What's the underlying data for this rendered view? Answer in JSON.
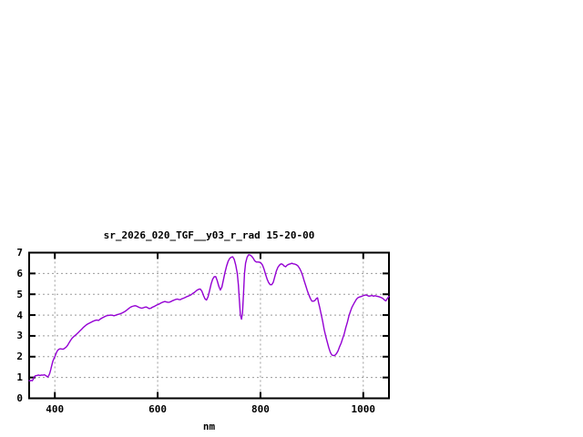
{
  "title": "sr_2026_020_TGF__y03_r_rad 15-20-00",
  "colors": {
    "curve": "#9400d3",
    "grid": "#9b9b9b",
    "frame": "#000000",
    "background": "#ffffff"
  },
  "chart_data": {
    "type": "line",
    "title": "sr_2026_020_TGF__y03_r_rad 15-20-00",
    "xlabel": "nm",
    "ylabel": "",
    "xlim": [
      350,
      1050
    ],
    "ylim": [
      0,
      7
    ],
    "xticks": [
      400,
      600,
      800,
      1000
    ],
    "yticks": [
      0,
      1,
      2,
      3,
      4,
      5,
      6,
      7
    ],
    "grid": true,
    "legend": "none",
    "series": [
      {
        "name": "sr_2026_020_TGF__y03_r_rad",
        "color": "#9400d3",
        "points": [
          [
            350,
            0.85
          ],
          [
            352,
            0.84
          ],
          [
            354,
            0.86
          ],
          [
            356,
            0.84
          ],
          [
            358,
            0.92
          ],
          [
            360,
            1.03
          ],
          [
            362,
            1.08
          ],
          [
            365,
            1.1
          ],
          [
            368,
            1.12
          ],
          [
            371,
            1.1
          ],
          [
            374,
            1.12
          ],
          [
            377,
            1.11
          ],
          [
            380,
            1.13
          ],
          [
            383,
            1.08
          ],
          [
            386,
            1.03
          ],
          [
            388,
            1.08
          ],
          [
            390,
            1.2
          ],
          [
            392,
            1.38
          ],
          [
            394,
            1.58
          ],
          [
            396,
            1.78
          ],
          [
            398,
            1.9
          ],
          [
            400,
            2.0
          ],
          [
            402,
            2.12
          ],
          [
            404,
            2.25
          ],
          [
            406,
            2.32
          ],
          [
            408,
            2.36
          ],
          [
            410,
            2.38
          ],
          [
            413,
            2.37
          ],
          [
            416,
            2.36
          ],
          [
            419,
            2.4
          ],
          [
            422,
            2.46
          ],
          [
            425,
            2.55
          ],
          [
            428,
            2.68
          ],
          [
            431,
            2.8
          ],
          [
            434,
            2.9
          ],
          [
            437,
            2.97
          ],
          [
            440,
            3.03
          ],
          [
            443,
            3.1
          ],
          [
            446,
            3.17
          ],
          [
            449,
            3.25
          ],
          [
            452,
            3.32
          ],
          [
            455,
            3.4
          ],
          [
            458,
            3.46
          ],
          [
            461,
            3.52
          ],
          [
            464,
            3.57
          ],
          [
            467,
            3.61
          ],
          [
            470,
            3.65
          ],
          [
            473,
            3.69
          ],
          [
            476,
            3.72
          ],
          [
            479,
            3.75
          ],
          [
            482,
            3.76
          ],
          [
            485,
            3.74
          ],
          [
            488,
            3.8
          ],
          [
            491,
            3.85
          ],
          [
            494,
            3.89
          ],
          [
            497,
            3.93
          ],
          [
            500,
            3.96
          ],
          [
            503,
            3.98
          ],
          [
            506,
            3.99
          ],
          [
            509,
            4.0
          ],
          [
            512,
            3.99
          ],
          [
            515,
            3.97
          ],
          [
            518,
            3.99
          ],
          [
            521,
            4.02
          ],
          [
            524,
            4.04
          ],
          [
            527,
            4.06
          ],
          [
            530,
            4.09
          ],
          [
            533,
            4.13
          ],
          [
            536,
            4.17
          ],
          [
            539,
            4.22
          ],
          [
            542,
            4.28
          ],
          [
            545,
            4.34
          ],
          [
            548,
            4.39
          ],
          [
            551,
            4.42
          ],
          [
            554,
            4.44
          ],
          [
            557,
            4.45
          ],
          [
            560,
            4.42
          ],
          [
            563,
            4.38
          ],
          [
            566,
            4.35
          ],
          [
            569,
            4.33
          ],
          [
            572,
            4.35
          ],
          [
            575,
            4.38
          ],
          [
            578,
            4.39
          ],
          [
            581,
            4.35
          ],
          [
            584,
            4.31
          ],
          [
            587,
            4.33
          ],
          [
            590,
            4.38
          ],
          [
            593,
            4.41
          ],
          [
            596,
            4.45
          ],
          [
            599,
            4.49
          ],
          [
            602,
            4.52
          ],
          [
            605,
            4.56
          ],
          [
            608,
            4.6
          ],
          [
            611,
            4.63
          ],
          [
            614,
            4.65
          ],
          [
            617,
            4.63
          ],
          [
            620,
            4.61
          ],
          [
            623,
            4.62
          ],
          [
            626,
            4.65
          ],
          [
            629,
            4.69
          ],
          [
            632,
            4.72
          ],
          [
            635,
            4.75
          ],
          [
            638,
            4.77
          ],
          [
            641,
            4.75
          ],
          [
            644,
            4.74
          ],
          [
            647,
            4.78
          ],
          [
            650,
            4.81
          ],
          [
            653,
            4.84
          ],
          [
            656,
            4.88
          ],
          [
            659,
            4.91
          ],
          [
            662,
            4.94
          ],
          [
            665,
            4.98
          ],
          [
            668,
            5.03
          ],
          [
            671,
            5.08
          ],
          [
            674,
            5.14
          ],
          [
            677,
            5.2
          ],
          [
            680,
            5.24
          ],
          [
            683,
            5.25
          ],
          [
            686,
            5.15
          ],
          [
            689,
            4.95
          ],
          [
            692,
            4.78
          ],
          [
            695,
            4.72
          ],
          [
            698,
            4.88
          ],
          [
            701,
            5.18
          ],
          [
            704,
            5.5
          ],
          [
            707,
            5.72
          ],
          [
            710,
            5.84
          ],
          [
            713,
            5.85
          ],
          [
            716,
            5.65
          ],
          [
            719,
            5.38
          ],
          [
            722,
            5.2
          ],
          [
            725,
            5.35
          ],
          [
            728,
            5.7
          ],
          [
            731,
            6.05
          ],
          [
            734,
            6.35
          ],
          [
            737,
            6.58
          ],
          [
            740,
            6.72
          ],
          [
            743,
            6.78
          ],
          [
            746,
            6.8
          ],
          [
            749,
            6.68
          ],
          [
            752,
            6.4
          ],
          [
            755,
            6.0
          ],
          [
            757,
            5.45
          ],
          [
            759,
            4.7
          ],
          [
            761,
            4.0
          ],
          [
            763,
            3.8
          ],
          [
            765,
            4.1
          ],
          [
            767,
            5.0
          ],
          [
            769,
            6.0
          ],
          [
            771,
            6.5
          ],
          [
            774,
            6.78
          ],
          [
            777,
            6.9
          ],
          [
            780,
            6.88
          ],
          [
            783,
            6.83
          ],
          [
            786,
            6.73
          ],
          [
            789,
            6.6
          ],
          [
            792,
            6.55
          ],
          [
            795,
            6.55
          ],
          [
            798,
            6.54
          ],
          [
            801,
            6.5
          ],
          [
            804,
            6.4
          ],
          [
            807,
            6.2
          ],
          [
            810,
            5.95
          ],
          [
            813,
            5.72
          ],
          [
            816,
            5.55
          ],
          [
            819,
            5.46
          ],
          [
            822,
            5.46
          ],
          [
            825,
            5.58
          ],
          [
            828,
            5.85
          ],
          [
            831,
            6.12
          ],
          [
            834,
            6.3
          ],
          [
            837,
            6.4
          ],
          [
            840,
            6.46
          ],
          [
            843,
            6.44
          ],
          [
            846,
            6.36
          ],
          [
            849,
            6.32
          ],
          [
            852,
            6.4
          ],
          [
            855,
            6.44
          ],
          [
            858,
            6.46
          ],
          [
            861,
            6.49
          ],
          [
            864,
            6.46
          ],
          [
            867,
            6.45
          ],
          [
            870,
            6.42
          ],
          [
            873,
            6.36
          ],
          [
            876,
            6.25
          ],
          [
            879,
            6.1
          ],
          [
            882,
            5.9
          ],
          [
            885,
            5.65
          ],
          [
            888,
            5.42
          ],
          [
            891,
            5.18
          ],
          [
            894,
            4.98
          ],
          [
            897,
            4.8
          ],
          [
            900,
            4.67
          ],
          [
            903,
            4.67
          ],
          [
            906,
            4.7
          ],
          [
            909,
            4.8
          ],
          [
            911,
            4.83
          ],
          [
            913,
            4.6
          ],
          [
            915,
            4.4
          ],
          [
            918,
            4.05
          ],
          [
            921,
            3.7
          ],
          [
            924,
            3.3
          ],
          [
            927,
            2.98
          ],
          [
            930,
            2.7
          ],
          [
            933,
            2.42
          ],
          [
            936,
            2.2
          ],
          [
            939,
            2.08
          ],
          [
            942,
            2.05
          ],
          [
            945,
            2.07
          ],
          [
            948,
            2.15
          ],
          [
            951,
            2.28
          ],
          [
            954,
            2.48
          ],
          [
            957,
            2.65
          ],
          [
            960,
            2.88
          ],
          [
            963,
            3.1
          ],
          [
            966,
            3.4
          ],
          [
            969,
            3.65
          ],
          [
            972,
            3.95
          ],
          [
            975,
            4.18
          ],
          [
            978,
            4.38
          ],
          [
            981,
            4.52
          ],
          [
            984,
            4.65
          ],
          [
            987,
            4.77
          ],
          [
            990,
            4.84
          ],
          [
            993,
            4.87
          ],
          [
            996,
            4.89
          ],
          [
            999,
            4.92
          ],
          [
            1002,
            4.95
          ],
          [
            1005,
            4.97
          ],
          [
            1008,
            4.94
          ],
          [
            1011,
            4.91
          ],
          [
            1014,
            4.92
          ],
          [
            1017,
            4.94
          ],
          [
            1020,
            4.91
          ],
          [
            1023,
            4.93
          ],
          [
            1026,
            4.91
          ],
          [
            1029,
            4.89
          ],
          [
            1032,
            4.87
          ],
          [
            1035,
            4.84
          ],
          [
            1038,
            4.8
          ],
          [
            1041,
            4.73
          ],
          [
            1044,
            4.68
          ],
          [
            1047,
            4.8
          ],
          [
            1050,
            4.9
          ]
        ]
      }
    ]
  }
}
